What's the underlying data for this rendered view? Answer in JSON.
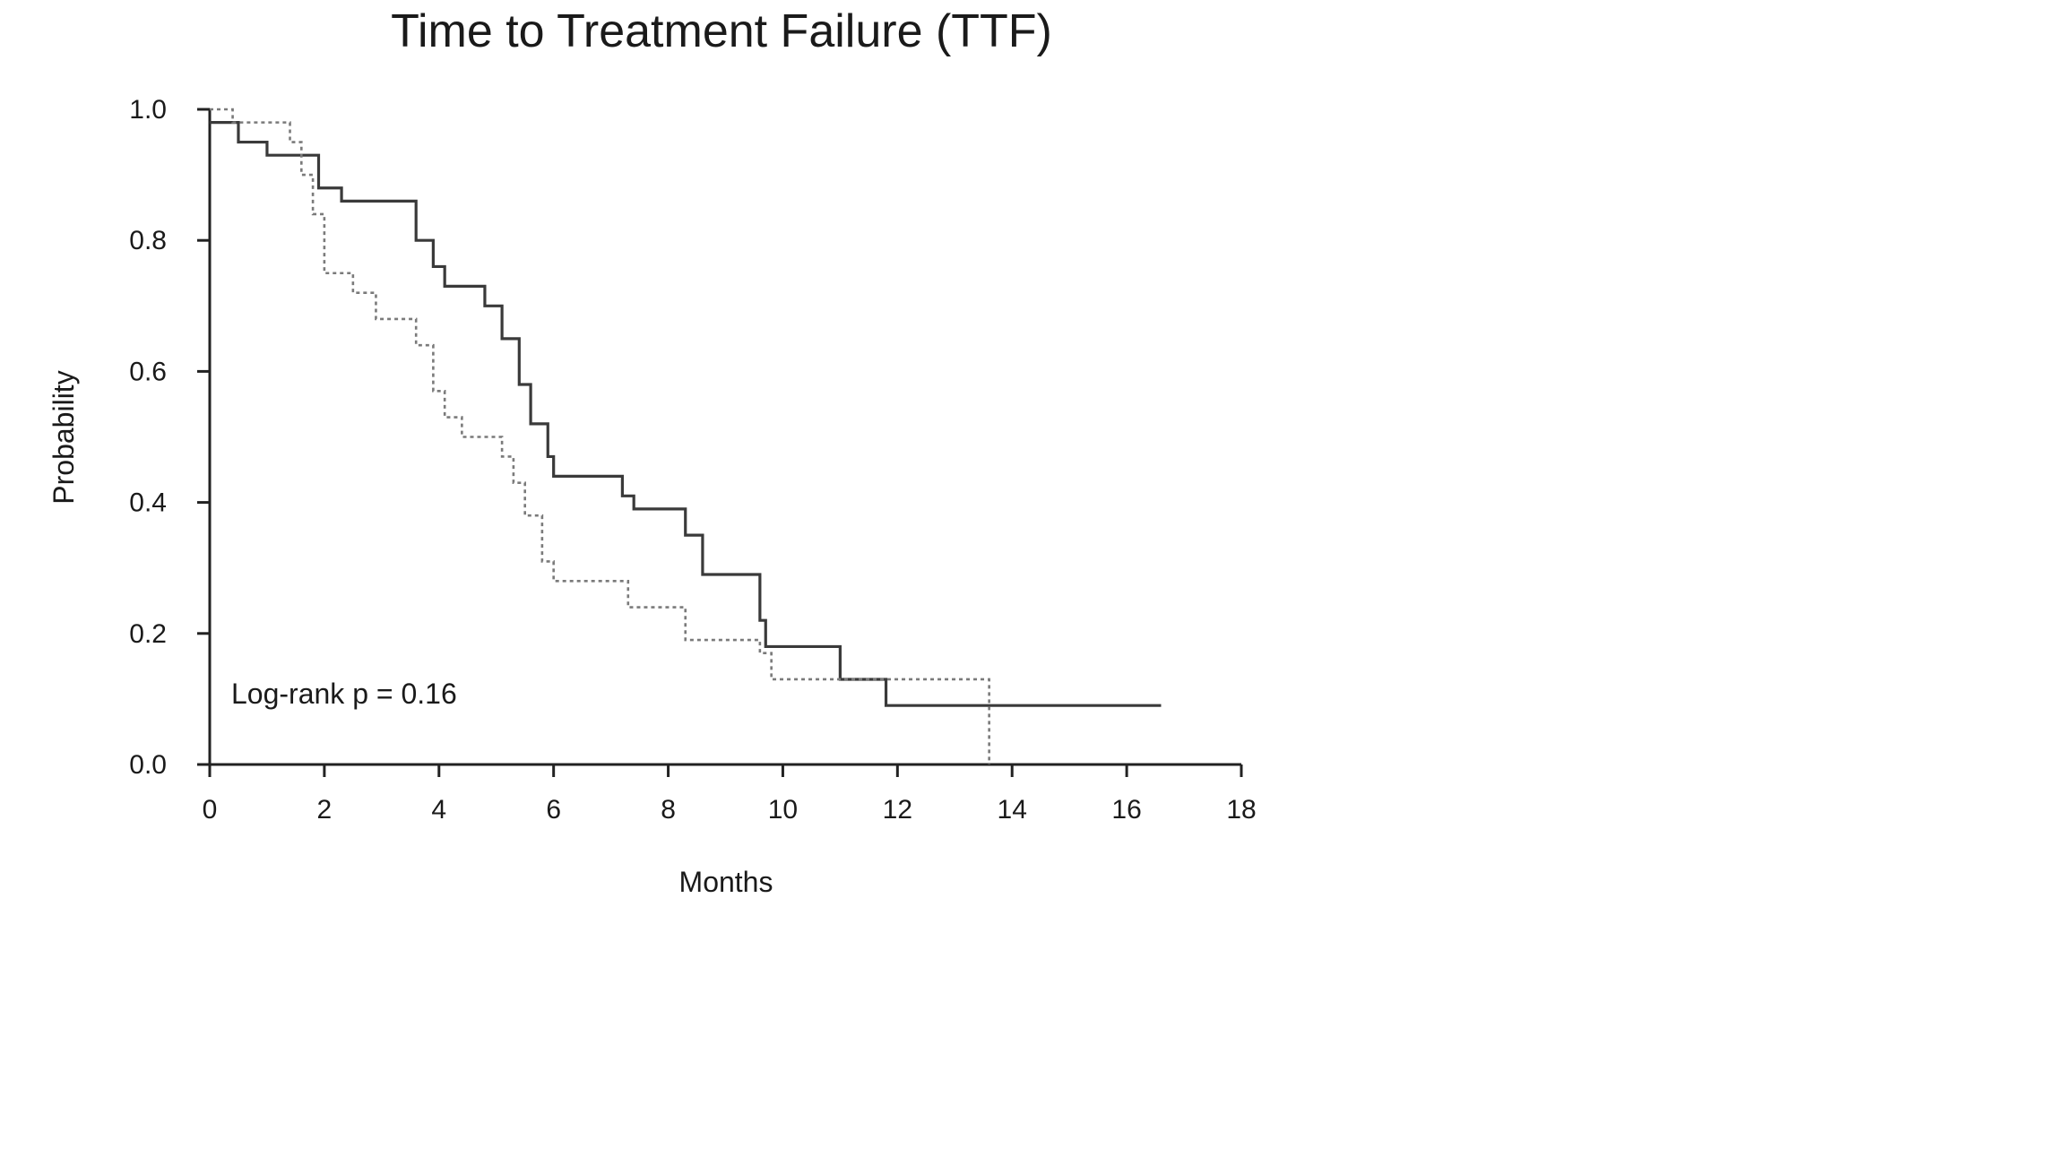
{
  "chart_data": {
    "type": "line",
    "title": "Time to Treatment Failure (TTF)",
    "xlabel": "Months",
    "ylabel": "Probability",
    "xlim": [
      0,
      18
    ],
    "ylim": [
      0,
      1.0
    ],
    "x_ticks": [
      "0",
      "2",
      "4",
      "6",
      "8",
      "10",
      "12",
      "14",
      "16",
      "18"
    ],
    "y_ticks": [
      "0.0",
      "0.2",
      "0.4",
      "0.6",
      "0.8",
      "1.0"
    ],
    "grid": false,
    "annotation": "Log-rank p = 0.16",
    "series": [
      {
        "style": "solid",
        "color": "#3a3a3a",
        "points": [
          [
            0,
            0.98
          ],
          [
            0.5,
            0.95
          ],
          [
            1.0,
            0.93
          ],
          [
            1.9,
            0.88
          ],
          [
            2.3,
            0.86
          ],
          [
            3.6,
            0.8
          ],
          [
            3.9,
            0.76
          ],
          [
            4.1,
            0.73
          ],
          [
            4.8,
            0.7
          ],
          [
            5.1,
            0.65
          ],
          [
            5.4,
            0.58
          ],
          [
            5.6,
            0.52
          ],
          [
            5.9,
            0.47
          ],
          [
            6.0,
            0.44
          ],
          [
            7.2,
            0.41
          ],
          [
            7.4,
            0.39
          ],
          [
            8.3,
            0.35
          ],
          [
            8.6,
            0.29
          ],
          [
            9.6,
            0.22
          ],
          [
            9.7,
            0.18
          ],
          [
            11.0,
            0.13
          ],
          [
            11.8,
            0.09
          ],
          [
            16.6,
            0.09
          ]
        ]
      },
      {
        "style": "dotted",
        "color": "#7a7a7a",
        "points": [
          [
            0,
            1.0
          ],
          [
            0.4,
            0.98
          ],
          [
            1.4,
            0.95
          ],
          [
            1.6,
            0.9
          ],
          [
            1.8,
            0.84
          ],
          [
            2.0,
            0.75
          ],
          [
            2.5,
            0.72
          ],
          [
            2.9,
            0.68
          ],
          [
            3.6,
            0.64
          ],
          [
            3.9,
            0.57
          ],
          [
            4.1,
            0.53
          ],
          [
            4.4,
            0.5
          ],
          [
            5.1,
            0.47
          ],
          [
            5.3,
            0.43
          ],
          [
            5.5,
            0.38
          ],
          [
            5.8,
            0.31
          ],
          [
            6.0,
            0.28
          ],
          [
            7.3,
            0.24
          ],
          [
            8.3,
            0.19
          ],
          [
            9.6,
            0.17
          ],
          [
            9.8,
            0.13
          ],
          [
            13.6,
            0.13
          ],
          [
            13.6,
            0.0
          ]
        ]
      }
    ]
  }
}
